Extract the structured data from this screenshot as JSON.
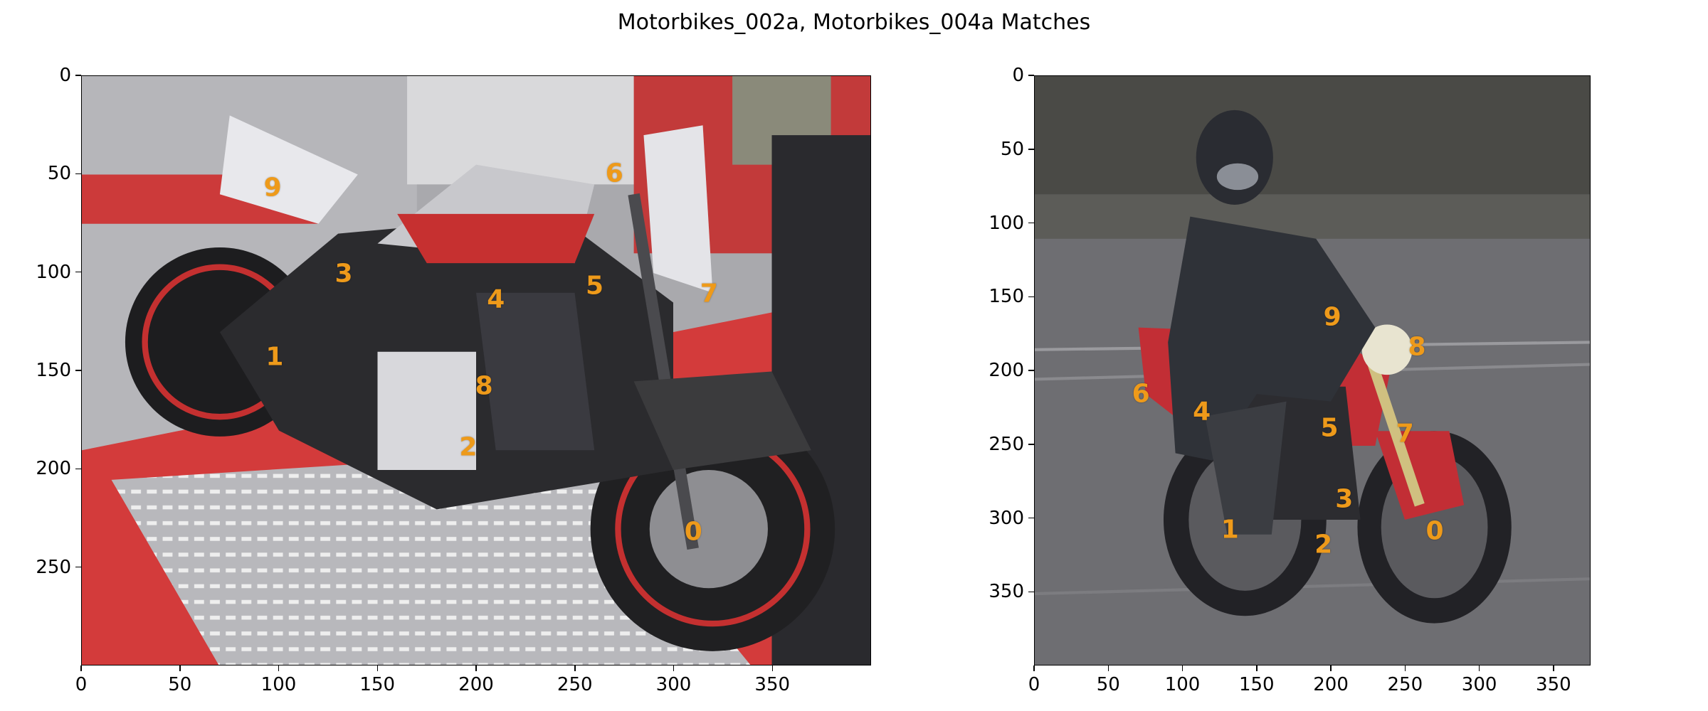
{
  "title": "Motorbikes_002a, Motorbikes_004a Matches",
  "colors": {
    "keypoint": "#ee9a1a",
    "axis": "#000000"
  },
  "chart_data": [
    {
      "type": "scatter",
      "name": "Motorbikes_002a",
      "xlim": [
        0,
        400
      ],
      "ylim": [
        300,
        0
      ],
      "x_ticks": [
        0,
        50,
        100,
        150,
        200,
        250,
        300,
        350
      ],
      "y_ticks": [
        0,
        50,
        100,
        150,
        200,
        250
      ],
      "points": [
        {
          "label": "0",
          "x": 310,
          "y": 232
        },
        {
          "label": "1",
          "x": 98,
          "y": 143
        },
        {
          "label": "2",
          "x": 196,
          "y": 189
        },
        {
          "label": "3",
          "x": 133,
          "y": 101
        },
        {
          "label": "4",
          "x": 210,
          "y": 114
        },
        {
          "label": "5",
          "x": 260,
          "y": 107
        },
        {
          "label": "6",
          "x": 270,
          "y": 50
        },
        {
          "label": "7",
          "x": 318,
          "y": 111
        },
        {
          "label": "8",
          "x": 204,
          "y": 158
        },
        {
          "label": "9",
          "x": 97,
          "y": 57
        }
      ]
    },
    {
      "type": "scatter",
      "name": "Motorbikes_004a",
      "xlim": [
        0,
        375
      ],
      "ylim": [
        400,
        0
      ],
      "x_ticks": [
        0,
        50,
        100,
        150,
        200,
        250,
        300,
        350
      ],
      "y_ticks": [
        0,
        50,
        100,
        150,
        200,
        250,
        300,
        350
      ],
      "points": [
        {
          "label": "0",
          "x": 270,
          "y": 309
        },
        {
          "label": "1",
          "x": 132,
          "y": 308
        },
        {
          "label": "2",
          "x": 195,
          "y": 318
        },
        {
          "label": "3",
          "x": 209,
          "y": 287
        },
        {
          "label": "4",
          "x": 113,
          "y": 228
        },
        {
          "label": "5",
          "x": 199,
          "y": 239
        },
        {
          "label": "6",
          "x": 72,
          "y": 216
        },
        {
          "label": "7",
          "x": 250,
          "y": 243
        },
        {
          "label": "8",
          "x": 258,
          "y": 184
        },
        {
          "label": "9",
          "x": 201,
          "y": 164
        }
      ]
    }
  ]
}
